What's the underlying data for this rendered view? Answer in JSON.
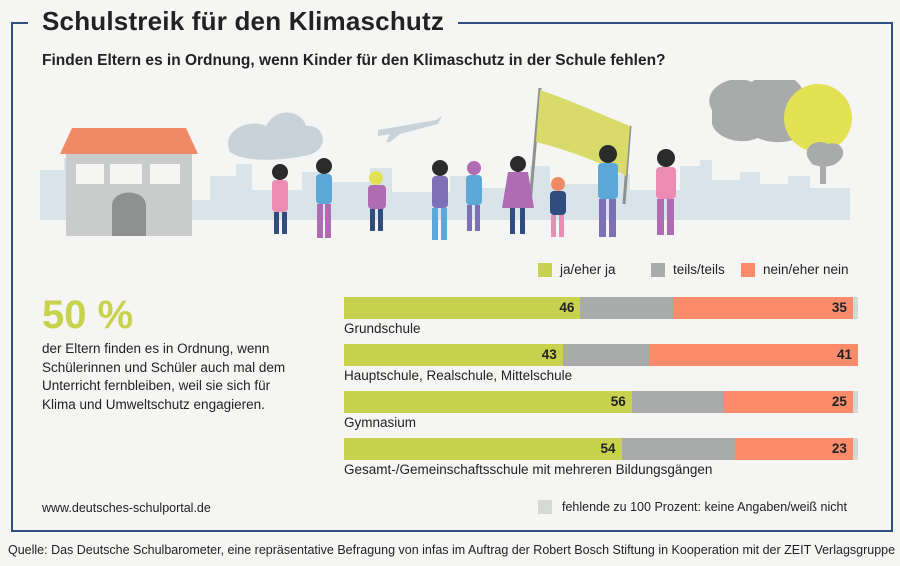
{
  "header": {
    "title": "Schulstreik für den Klimaschutz",
    "subtitle": "Finden Eltern es in Ordnung,  wenn Kinder für den Klimaschutz in der Schule fehlen?"
  },
  "highlight": {
    "percent": "50 %",
    "text": "der Eltern finden es in Ordnung, wenn Schülerinnen und Schüler auch mal dem Unterricht fernbleiben, weil sie sich für Klima und Umweltschutz engagieren."
  },
  "footer": {
    "url": "www.deutsches-schulportal.de",
    "missing_note": "fehlende zu 100 Prozent: keine Angaben/weiß nicht",
    "source": "Quelle: Das Deutsche Schulbarometer, eine repräsentative Befragung von infas im Auftrag der Robert Bosch Stiftung in Kooperation mit der ZEIT Verlagsgruppe"
  },
  "colors": {
    "yes": "#c9d24f",
    "partly": "#a9abaa",
    "no": "#fb8b6b",
    "missing": "#d6d8d6",
    "frame": "#2f4d7e"
  },
  "chart_data": {
    "type": "bar",
    "orientation": "horizontal",
    "stacked": true,
    "categories": [
      "Grundschule",
      "Hauptschule, Realschule, Mittelschule",
      "Gymnasium",
      "Gesamt-/Gemeinschaftsschule mit mehreren Bildungsgängen"
    ],
    "series": [
      {
        "name": "ja/eher ja",
        "values": [
          46,
          43,
          56,
          54
        ],
        "labeled": true
      },
      {
        "name": "teils/teils",
        "values": [
          18,
          17,
          18,
          22
        ],
        "labeled": false
      },
      {
        "name": "nein/eher nein",
        "values": [
          35,
          41,
          25,
          23
        ],
        "labeled": true
      },
      {
        "name": "keine Angaben/weiß nicht",
        "values": [
          1,
          0,
          1,
          1
        ],
        "labeled": false
      }
    ],
    "xlim": [
      0,
      100
    ],
    "legend": [
      "ja/eher ja",
      "teils/teils",
      "nein/eher nein"
    ],
    "legend_position": "top-right"
  }
}
